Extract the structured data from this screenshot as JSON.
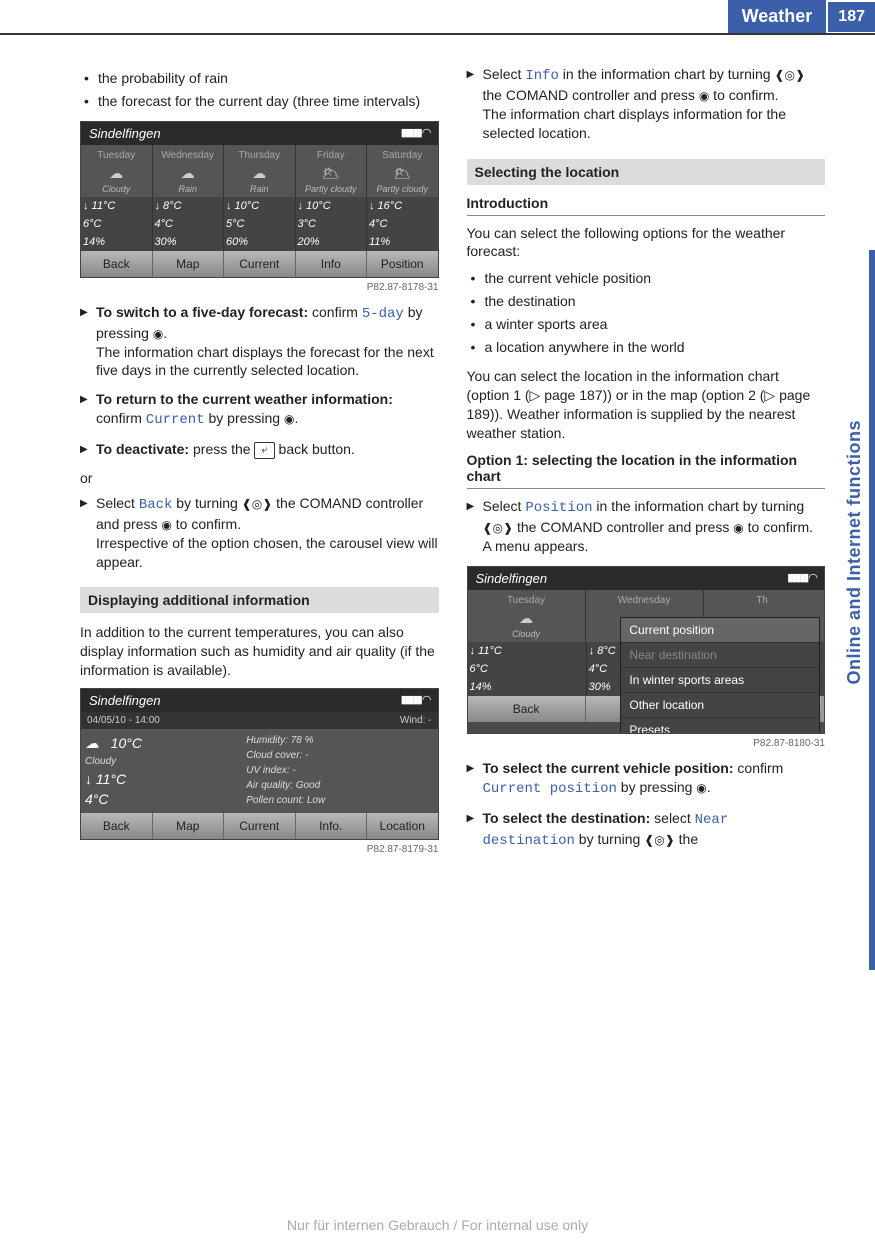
{
  "header": {
    "title": "Weather",
    "page": "187"
  },
  "sideTab": "Online and Internet functions",
  "col1": {
    "topBullets": [
      "the probability of rain",
      "the forecast for the current day (three time intervals)"
    ],
    "ss1": {
      "location": "Sindelfingen",
      "days": [
        "Tuesday",
        "Wednesday",
        "Thursday",
        "Friday",
        "Saturday"
      ],
      "icons": [
        "☁",
        "☁",
        "☁",
        "🌥",
        "🌥"
      ],
      "labels": [
        "Cloudy",
        "Rain",
        "Rain",
        "Partly cloudy",
        "Partly cloudy"
      ],
      "high": [
        "↓ 11°C",
        "↓ 8°C",
        "↓ 10°C",
        "↓ 10°C",
        "↓ 16°C"
      ],
      "low": [
        "6°C",
        "4°C",
        "5°C",
        "3°C",
        "4°C"
      ],
      "prob": [
        "14%",
        "30%",
        "60%",
        "20%",
        "11%"
      ],
      "bar": [
        "Back",
        "Map",
        "Current",
        "Info",
        "Position"
      ],
      "ref": "P82.87-8178-31"
    },
    "step1a": "To switch to a five-day forecast:",
    "step1b": " confirm ",
    "step1c": "5-day",
    "step1d": " by pressing ",
    "step1e": ".",
    "step1f": "The information chart displays the forecast for the next five days in the currently selected location.",
    "step2a": "To return to the current weather information:",
    "step2b": " confirm ",
    "step2c": "Current",
    "step2d": " by pressing ",
    "step2e": ".",
    "step3a": "To deactivate:",
    "step3b": " press the ",
    "step3c": "⤶",
    "step3d": " back button.",
    "or": "or",
    "step4a": "Select ",
    "step4b": "Back",
    "step4c": " by turning ",
    "step4d": " the COMAND controller and press ",
    "step4e": " to confirm.",
    "step4f": "Irrespective of the option chosen, the carousel view will appear.",
    "section2": "Displaying additional information",
    "para2": "In addition to the current temperatures, you can also display information such as humidity and air quality (if the information is available).",
    "ss2": {
      "location": "Sindelfingen",
      "date": "04/05/10 - 14:00",
      "windLabel": "Wind:",
      "wind": "-",
      "temp": "10°C",
      "humLabel": "Humidity:",
      "hum": "78 %",
      "cond": "Cloudy",
      "cloudLabel": "Cloud cover:",
      "cloud": "-",
      "hi": "↓ 11°C",
      "uvLabel": "UV index:",
      "uv": "-",
      "lo": "4°C",
      "airLabel": "Air quality:",
      "air": "Good",
      "pollenLabel": "Pollen count:",
      "pollen": "Low",
      "bar": [
        "Back",
        "Map",
        "Current",
        "Info.",
        "Location"
      ],
      "ref": "P82.87-8179-31"
    }
  },
  "col2": {
    "step1a": "Select ",
    "step1b": "Info",
    "step1c": " in the information chart by turning ",
    "step1d": " the COMAND controller and press ",
    "step1e": " to confirm.",
    "step1f": "The information chart displays information for the selected location.",
    "section1": "Selecting the location",
    "sub1": "Introduction",
    "para1": "You can select the following options for the weather forecast:",
    "bullets": [
      "the current vehicle position",
      "the destination",
      "a winter sports area",
      "a location anywhere in the world"
    ],
    "para2": "You can select the location in the information chart (option 1 (▷ page 187)) or in the map (option 2 (▷ page 189)). Weather information is supplied by the nearest weather station.",
    "sub2": "Option 1: selecting the location in the information chart",
    "step2a": "Select ",
    "step2b": "Position",
    "step2c": " in the information chart by turning ",
    "step2d": " the COMAND controller and press ",
    "step2e": " to confirm.",
    "step2f": "A menu appears.",
    "ss3": {
      "location": "Sindelfingen",
      "days": [
        "Tuesday",
        "Wednesday",
        "Th"
      ],
      "labels": [
        "Cloudy",
        "Rain",
        ""
      ],
      "high": [
        "↓ 11°C",
        "↓ 8°C",
        "↓"
      ],
      "low": [
        "6°C",
        "4°C",
        ""
      ],
      "prob": [
        "14%",
        "30%",
        ""
      ],
      "menu": [
        "Current position",
        "Near destination",
        "In winter sports areas",
        "Other location",
        "Presets"
      ],
      "bar": [
        "Back",
        "Map",
        "Cu"
      ],
      "ref": "P82.87-8180-31"
    },
    "step3a": "To select the current vehicle position:",
    "step3b": " confirm ",
    "step3c": "Current position",
    "step3d": " by pressing ",
    "step3e": ".",
    "step4a": "To select the destination:",
    "step4b": " select ",
    "step4c": "Near destination",
    "step4d": " by turning ",
    "step4e": " the"
  },
  "footer": "Nur für internen Gebrauch / For internal use only",
  "icons": {
    "rotate": "◐",
    "press": "◉",
    "turn": "❰◎❱"
  }
}
